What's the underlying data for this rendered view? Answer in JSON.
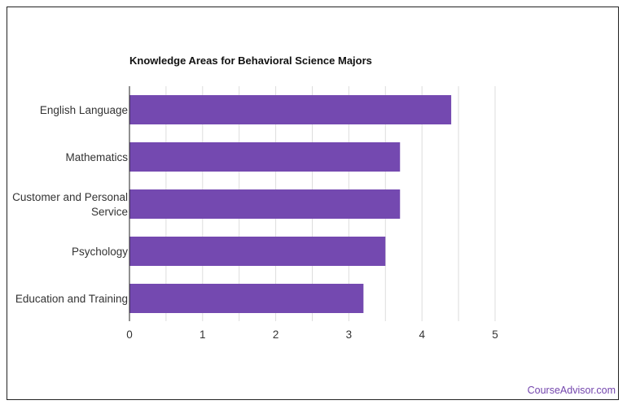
{
  "chart_data": {
    "type": "bar",
    "orientation": "horizontal",
    "title": "Knowledge Areas for Behavioral Science Majors",
    "categories": [
      [
        "English Language"
      ],
      [
        "Mathematics"
      ],
      [
        "Customer and Personal",
        "Service"
      ],
      [
        "Psychology"
      ],
      [
        "Education and Training"
      ]
    ],
    "values": [
      4.4,
      3.7,
      3.7,
      3.5,
      3.2
    ],
    "xlim": [
      0,
      5
    ],
    "xticks": [
      "0",
      "1",
      "2",
      "3",
      "4",
      "5"
    ],
    "bar_color": "#7449b0",
    "grid_color": "#dddddd",
    "grid": true
  },
  "watermark": "CourseAdvisor.com"
}
